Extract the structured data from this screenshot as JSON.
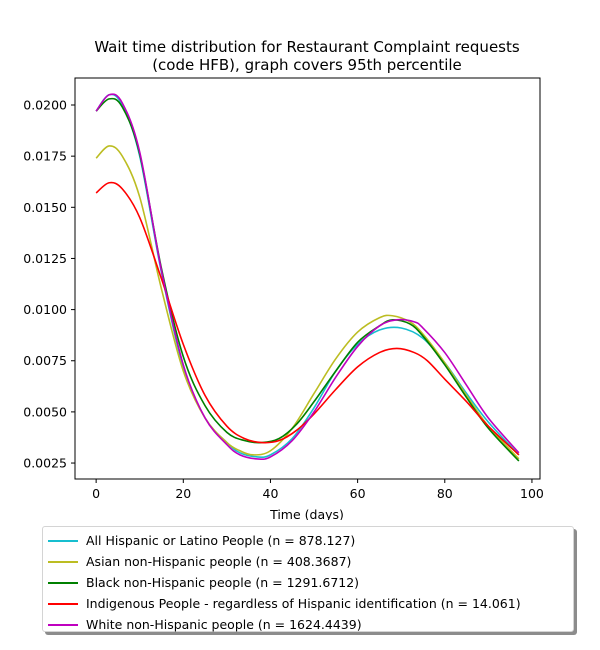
{
  "chart_data": {
    "type": "line",
    "title": [
      "Wait time distribution  for Restaurant Complaint  requests",
      "(code HFB), graph covers 95th percentile"
    ],
    "xlabel": "Time (days)",
    "ylabel": "",
    "xlim": [
      -4.85,
      101.85
    ],
    "ylim": [
      0.00172,
      0.02132
    ],
    "xticks": [
      0,
      20,
      40,
      60,
      80,
      100
    ],
    "yticks": [
      0.0025,
      0.005,
      0.0075,
      0.01,
      0.0125,
      0.015,
      0.0175,
      0.02
    ],
    "ytick_labels": [
      "0.0025",
      "0.0050",
      "0.0075",
      "0.0100",
      "0.0125",
      "0.0150",
      "0.0175",
      "0.0200"
    ],
    "grid": false,
    "legend_position": "below",
    "series": [
      {
        "name": "All Hispanic or Latino People (n = 878.127)",
        "color": "#17becf",
        "x": [
          0,
          3,
          6,
          10,
          15,
          20,
          25,
          30,
          33,
          37,
          40,
          45,
          50,
          55,
          60,
          65,
          70,
          75,
          80,
          85,
          90,
          97
        ],
        "y": [
          0.0197,
          0.0205,
          0.02,
          0.0175,
          0.0118,
          0.0072,
          0.0047,
          0.0035,
          0.003,
          0.0028,
          0.0029,
          0.0037,
          0.0052,
          0.007,
          0.0083,
          0.009,
          0.0091,
          0.0086,
          0.0074,
          0.0059,
          0.0045,
          0.0029
        ]
      },
      {
        "name": "Asian non-Hispanic people (n = 408.3687)",
        "color": "#bcbd22",
        "x": [
          0,
          3,
          6,
          10,
          15,
          20,
          25,
          30,
          33,
          36,
          40,
          45,
          50,
          55,
          60,
          65,
          68,
          72,
          75,
          80,
          85,
          90,
          97
        ],
        "y": [
          0.0174,
          0.018,
          0.0175,
          0.0155,
          0.011,
          0.007,
          0.0047,
          0.0035,
          0.0031,
          0.0029,
          0.0031,
          0.0042,
          0.0059,
          0.0076,
          0.0089,
          0.0096,
          0.0097,
          0.0094,
          0.0088,
          0.0074,
          0.0058,
          0.0043,
          0.0027
        ]
      },
      {
        "name": "Black non-Hispanic people (n = 1291.6712)",
        "color": "#008000",
        "x": [
          0,
          3,
          6,
          10,
          15,
          20,
          25,
          30,
          34,
          38,
          42,
          46,
          50,
          55,
          60,
          65,
          68,
          72,
          75,
          80,
          85,
          90,
          97
        ],
        "y": [
          0.0197,
          0.0203,
          0.0199,
          0.0176,
          0.012,
          0.0077,
          0.0053,
          0.004,
          0.0036,
          0.0035,
          0.0037,
          0.0044,
          0.0055,
          0.007,
          0.0084,
          0.0092,
          0.0095,
          0.0093,
          0.0087,
          0.0073,
          0.0057,
          0.0042,
          0.0026
        ]
      },
      {
        "name": "Indigenous People - regardless of Hispanic identification (n = 14.061)",
        "color": "#ff0000",
        "x": [
          0,
          3,
          6,
          10,
          15,
          20,
          25,
          30,
          34,
          38,
          42,
          46,
          50,
          55,
          60,
          65,
          69,
          73,
          76,
          80,
          85,
          90,
          97
        ],
        "y": [
          0.0157,
          0.0162,
          0.0159,
          0.0145,
          0.0115,
          0.0083,
          0.0058,
          0.0043,
          0.0037,
          0.0035,
          0.0036,
          0.0041,
          0.0049,
          0.0061,
          0.0072,
          0.0079,
          0.0081,
          0.0079,
          0.0075,
          0.0066,
          0.0055,
          0.0043,
          0.0029
        ]
      },
      {
        "name": "White non-Hispanic people (n = 1624.4439)",
        "color": "#bf00bf",
        "x": [
          0,
          3,
          6,
          10,
          15,
          20,
          25,
          30,
          33,
          37,
          40,
          45,
          50,
          55,
          60,
          65,
          69,
          73,
          75,
          80,
          85,
          90,
          97
        ],
        "y": [
          0.0197,
          0.0205,
          0.0201,
          0.0177,
          0.0119,
          0.0073,
          0.0047,
          0.0034,
          0.0029,
          0.0027,
          0.0028,
          0.0036,
          0.005,
          0.0067,
          0.0082,
          0.0092,
          0.0095,
          0.0094,
          0.0091,
          0.0079,
          0.0063,
          0.0047,
          0.003
        ]
      }
    ]
  }
}
